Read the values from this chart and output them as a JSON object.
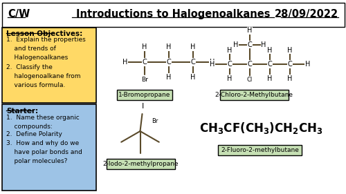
{
  "title_cw": "C/W",
  "title_main": "Introductions to Halogenoalkanes",
  "title_date": "28/09/2022",
  "bg_color": "#ffffff",
  "objectives_bg": "#ffd966",
  "starter_bg": "#9dc3e6",
  "objectives_title": "Lesson Objectives:",
  "objectives_line1": "1.  Explain the properties\n    and trends of\n    Halogenoalkanes",
  "objectives_line2": "2.  Classify the\n    halogenoalkane from\n    various formula.",
  "starter_title": "Starter:",
  "starter_line1": "1.  Name these organic\n    compounds:",
  "starter_line2": "2.  Define Polarity",
  "starter_line3": "3.  How and why do we\n    have polar bonds and\n    polar molecules?",
  "label1": "1-Bromopropane",
  "label2": "2-Chloro-2-Methylbutane",
  "label3": "2-Iodo-2-methylpropane",
  "label4": "2-Fluoro-2-methylbutane",
  "bond_color": "#5a4a2a",
  "label_box_color": "#c6e0b4"
}
